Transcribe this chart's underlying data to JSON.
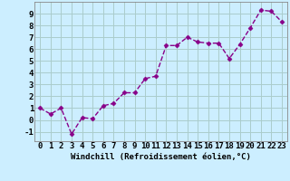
{
  "x": [
    0,
    1,
    2,
    3,
    4,
    5,
    6,
    7,
    8,
    9,
    10,
    11,
    12,
    13,
    14,
    15,
    16,
    17,
    18,
    19,
    20,
    21,
    22,
    23
  ],
  "y": [
    1.0,
    0.5,
    1.0,
    -1.2,
    0.2,
    0.1,
    1.2,
    1.4,
    2.3,
    2.3,
    3.5,
    3.7,
    6.3,
    6.3,
    7.0,
    6.6,
    6.5,
    6.5,
    5.2,
    6.4,
    7.8,
    9.3,
    9.2,
    8.3
  ],
  "line_color": "#880088",
  "marker": "D",
  "marker_size": 2.5,
  "bg_color": "#cceeff",
  "grid_color": "#aacccc",
  "xlabel": "Windchill (Refroidissement éolien,°C)",
  "xlim": [
    -0.5,
    23.5
  ],
  "ylim": [
    -1.8,
    10.0
  ],
  "yticks": [
    -1,
    0,
    1,
    2,
    3,
    4,
    5,
    6,
    7,
    8,
    9
  ],
  "xticks": [
    0,
    1,
    2,
    3,
    4,
    5,
    6,
    7,
    8,
    9,
    10,
    11,
    12,
    13,
    14,
    15,
    16,
    17,
    18,
    19,
    20,
    21,
    22,
    23
  ],
  "xlabel_fontsize": 6.5,
  "tick_fontsize": 6.5,
  "linewidth": 1.0,
  "linestyle": "--"
}
